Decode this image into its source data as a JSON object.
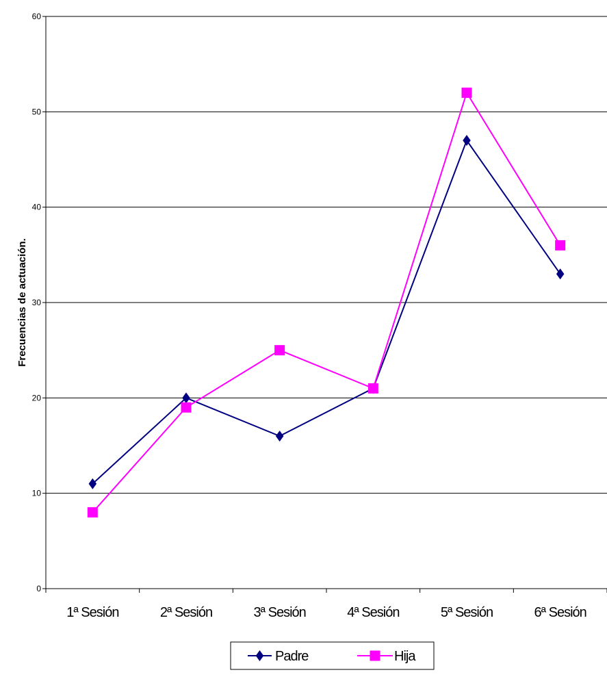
{
  "chart_data": {
    "type": "line",
    "categories": [
      "1ª Sesión",
      "2ª Sesión",
      "3ª Sesión",
      "4ª Sesión",
      "5ª Sesión",
      "6ª Sesión"
    ],
    "series": [
      {
        "name": "Padre",
        "values": [
          11,
          20,
          16,
          21,
          47,
          33
        ],
        "color": "#000080",
        "marker": "diamond"
      },
      {
        "name": "Hija",
        "values": [
          8,
          19,
          25,
          21,
          52,
          36
        ],
        "color": "#FF00FF",
        "marker": "square"
      }
    ],
    "title": "",
    "xlabel": "",
    "ylabel": "Frecuencias de actuación.",
    "ylim": [
      0,
      60
    ],
    "yticks": [
      0,
      10,
      20,
      30,
      40,
      50,
      60
    ],
    "grid": true,
    "legend": "bottom"
  }
}
